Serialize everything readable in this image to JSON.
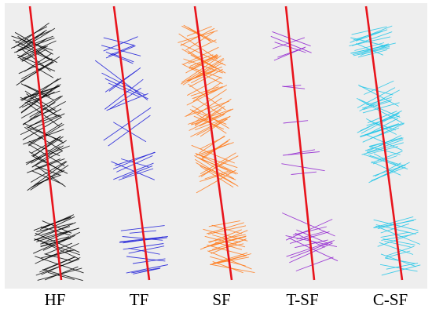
{
  "colors": {
    "wellbore": "#e8141c",
    "background": "#eeeeee"
  },
  "columns": [
    {
      "label": "HF",
      "color": "#000000"
    },
    {
      "label": "TF",
      "color": "#1b1bd8"
    },
    {
      "label": "SF",
      "color": "#ff7a1a"
    },
    {
      "label": "T-SF",
      "color": "#8f1fcf"
    },
    {
      "label": "C-SF",
      "color": "#21c6e8"
    }
  ]
}
